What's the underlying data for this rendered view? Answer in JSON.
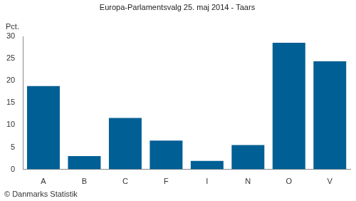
{
  "chart_data": {
    "type": "bar",
    "title": "Europa-Parlamentsvalg 25. maj 2014 - Taars",
    "ylabel": "Pct.",
    "source": "© Danmarks Statistik",
    "categories": [
      "A",
      "B",
      "C",
      "F",
      "I",
      "N",
      "O",
      "V"
    ],
    "values": [
      18.8,
      3.0,
      11.6,
      6.5,
      1.9,
      5.5,
      28.6,
      24.4
    ],
    "color": "#005f94",
    "ylim": [
      0,
      30
    ],
    "yticks": [
      0,
      5,
      10,
      15,
      20,
      25,
      30
    ],
    "grid": false
  }
}
